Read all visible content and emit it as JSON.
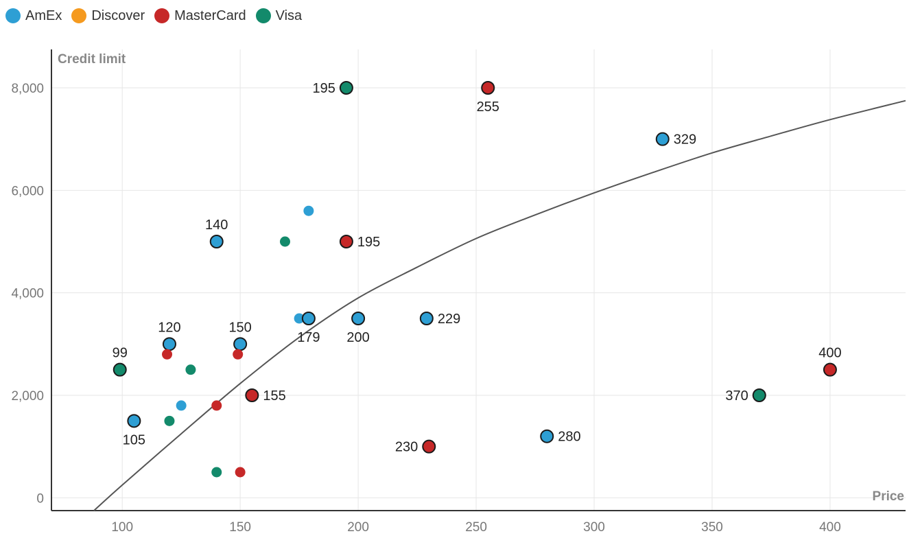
{
  "chart_data": {
    "type": "scatter",
    "xlabel": "Price",
    "ylabel": "Credit limit",
    "xlim": [
      70,
      432
    ],
    "ylim": [
      -250,
      8750
    ],
    "x_ticks": [
      "100",
      "150",
      "200",
      "250",
      "300",
      "350",
      "400"
    ],
    "y_ticks": [
      "0",
      "2,000",
      "4,000",
      "6,000",
      "8,000"
    ],
    "grid": true,
    "legend_position": "top-left",
    "series": [
      {
        "name": "AmEx",
        "color": "#2E9FD4",
        "points": [
          {
            "x": 105,
            "y": 1500,
            "label": "105",
            "label_pos": "below"
          },
          {
            "x": 120,
            "y": 3000,
            "label": "120",
            "label_pos": "above"
          },
          {
            "x": 125,
            "y": 1800,
            "label": ""
          },
          {
            "x": 140,
            "y": 5000,
            "label": "140",
            "label_pos": "above"
          },
          {
            "x": 150,
            "y": 3000,
            "label": "150",
            "label_pos": "above"
          },
          {
            "x": 175,
            "y": 3500,
            "label": ""
          },
          {
            "x": 179,
            "y": 3500,
            "label": "179",
            "label_pos": "below"
          },
          {
            "x": 179,
            "y": 5600,
            "label": ""
          },
          {
            "x": 200,
            "y": 3500,
            "label": "200",
            "label_pos": "below"
          },
          {
            "x": 229,
            "y": 3500,
            "label": "229",
            "label_pos": "right"
          },
          {
            "x": 280,
            "y": 1200,
            "label": "280",
            "label_pos": "right"
          },
          {
            "x": 329,
            "y": 7000,
            "label": "329",
            "label_pos": "right"
          }
        ]
      },
      {
        "name": "Discover",
        "color": "#F59A1F",
        "points": []
      },
      {
        "name": "MasterCard",
        "color": "#C62828",
        "points": [
          {
            "x": 119,
            "y": 2800,
            "label": ""
          },
          {
            "x": 140,
            "y": 1800,
            "label": ""
          },
          {
            "x": 149,
            "y": 2800,
            "label": ""
          },
          {
            "x": 150,
            "y": 500,
            "label": ""
          },
          {
            "x": 155,
            "y": 2000,
            "label": "155",
            "label_pos": "right"
          },
          {
            "x": 195,
            "y": 5000,
            "label": "195",
            "label_pos": "right"
          },
          {
            "x": 230,
            "y": 1000,
            "label": "230",
            "label_pos": "left"
          },
          {
            "x": 255,
            "y": 8000,
            "label": "255",
            "label_pos": "below"
          },
          {
            "x": 400,
            "y": 2500,
            "label": "400",
            "label_pos": "above"
          }
        ]
      },
      {
        "name": "Visa",
        "color": "#138A6B",
        "points": [
          {
            "x": 99,
            "y": 2500,
            "label": "99",
            "label_pos": "above"
          },
          {
            "x": 120,
            "y": 1500,
            "label": ""
          },
          {
            "x": 129,
            "y": 2500,
            "label": ""
          },
          {
            "x": 140,
            "y": 500,
            "label": ""
          },
          {
            "x": 169,
            "y": 5000,
            "label": ""
          },
          {
            "x": 195,
            "y": 8000,
            "label": "195",
            "label_pos": "left"
          },
          {
            "x": 370,
            "y": 2000,
            "label": "370",
            "label_pos": "left"
          }
        ]
      }
    ],
    "trendline": {
      "type": "logarithmic",
      "color": "#555555",
      "points": [
        {
          "x": 88,
          "y": -250
        },
        {
          "x": 100,
          "y": 250
        },
        {
          "x": 125,
          "y": 1250
        },
        {
          "x": 150,
          "y": 2230
        },
        {
          "x": 175,
          "y": 3130
        },
        {
          "x": 200,
          "y": 3900
        },
        {
          "x": 225,
          "y": 4500
        },
        {
          "x": 250,
          "y": 5060
        },
        {
          "x": 275,
          "y": 5520
        },
        {
          "x": 300,
          "y": 5950
        },
        {
          "x": 325,
          "y": 6350
        },
        {
          "x": 350,
          "y": 6730
        },
        {
          "x": 375,
          "y": 7060
        },
        {
          "x": 400,
          "y": 7380
        },
        {
          "x": 432,
          "y": 7750
        }
      ]
    }
  }
}
